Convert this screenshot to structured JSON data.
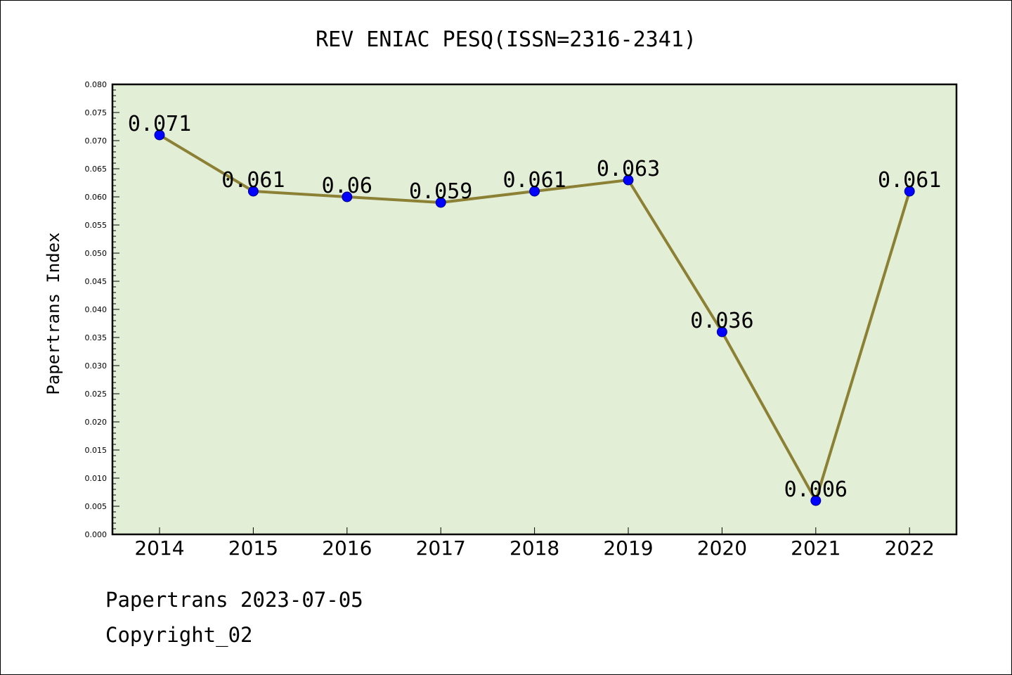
{
  "chart_data": {
    "type": "line",
    "title": "REV ENIAC PESQ(ISSN=2316-2341)",
    "xlabel": "",
    "ylabel": "Papertrans Index",
    "categories": [
      "2014",
      "2015",
      "2016",
      "2017",
      "2018",
      "2019",
      "2020",
      "2021",
      "2022"
    ],
    "values": [
      0.071,
      0.061,
      0.06,
      0.059,
      0.061,
      0.063,
      0.036,
      0.006,
      0.061
    ],
    "data_labels": [
      "0.071",
      "0.061",
      "0.06",
      "0.059",
      "0.061",
      "0.063",
      "0.036",
      "0.006",
      "0.061"
    ],
    "ylim": [
      0,
      0.08
    ],
    "yticks": [
      "0.000",
      "0.005",
      "0.010",
      "0.015",
      "0.020",
      "0.025",
      "0.030",
      "0.035",
      "0.040",
      "0.045",
      "0.050",
      "0.055",
      "0.060",
      "0.065",
      "0.070",
      "0.075",
      "0.080"
    ],
    "grid": false,
    "colors": {
      "plot_background": "#e2efd6",
      "line": "#8b8034",
      "marker": "#0000ff"
    }
  },
  "footer": {
    "date_line": "Papertrans 2023-07-05",
    "copyright": "Copyright_02"
  }
}
